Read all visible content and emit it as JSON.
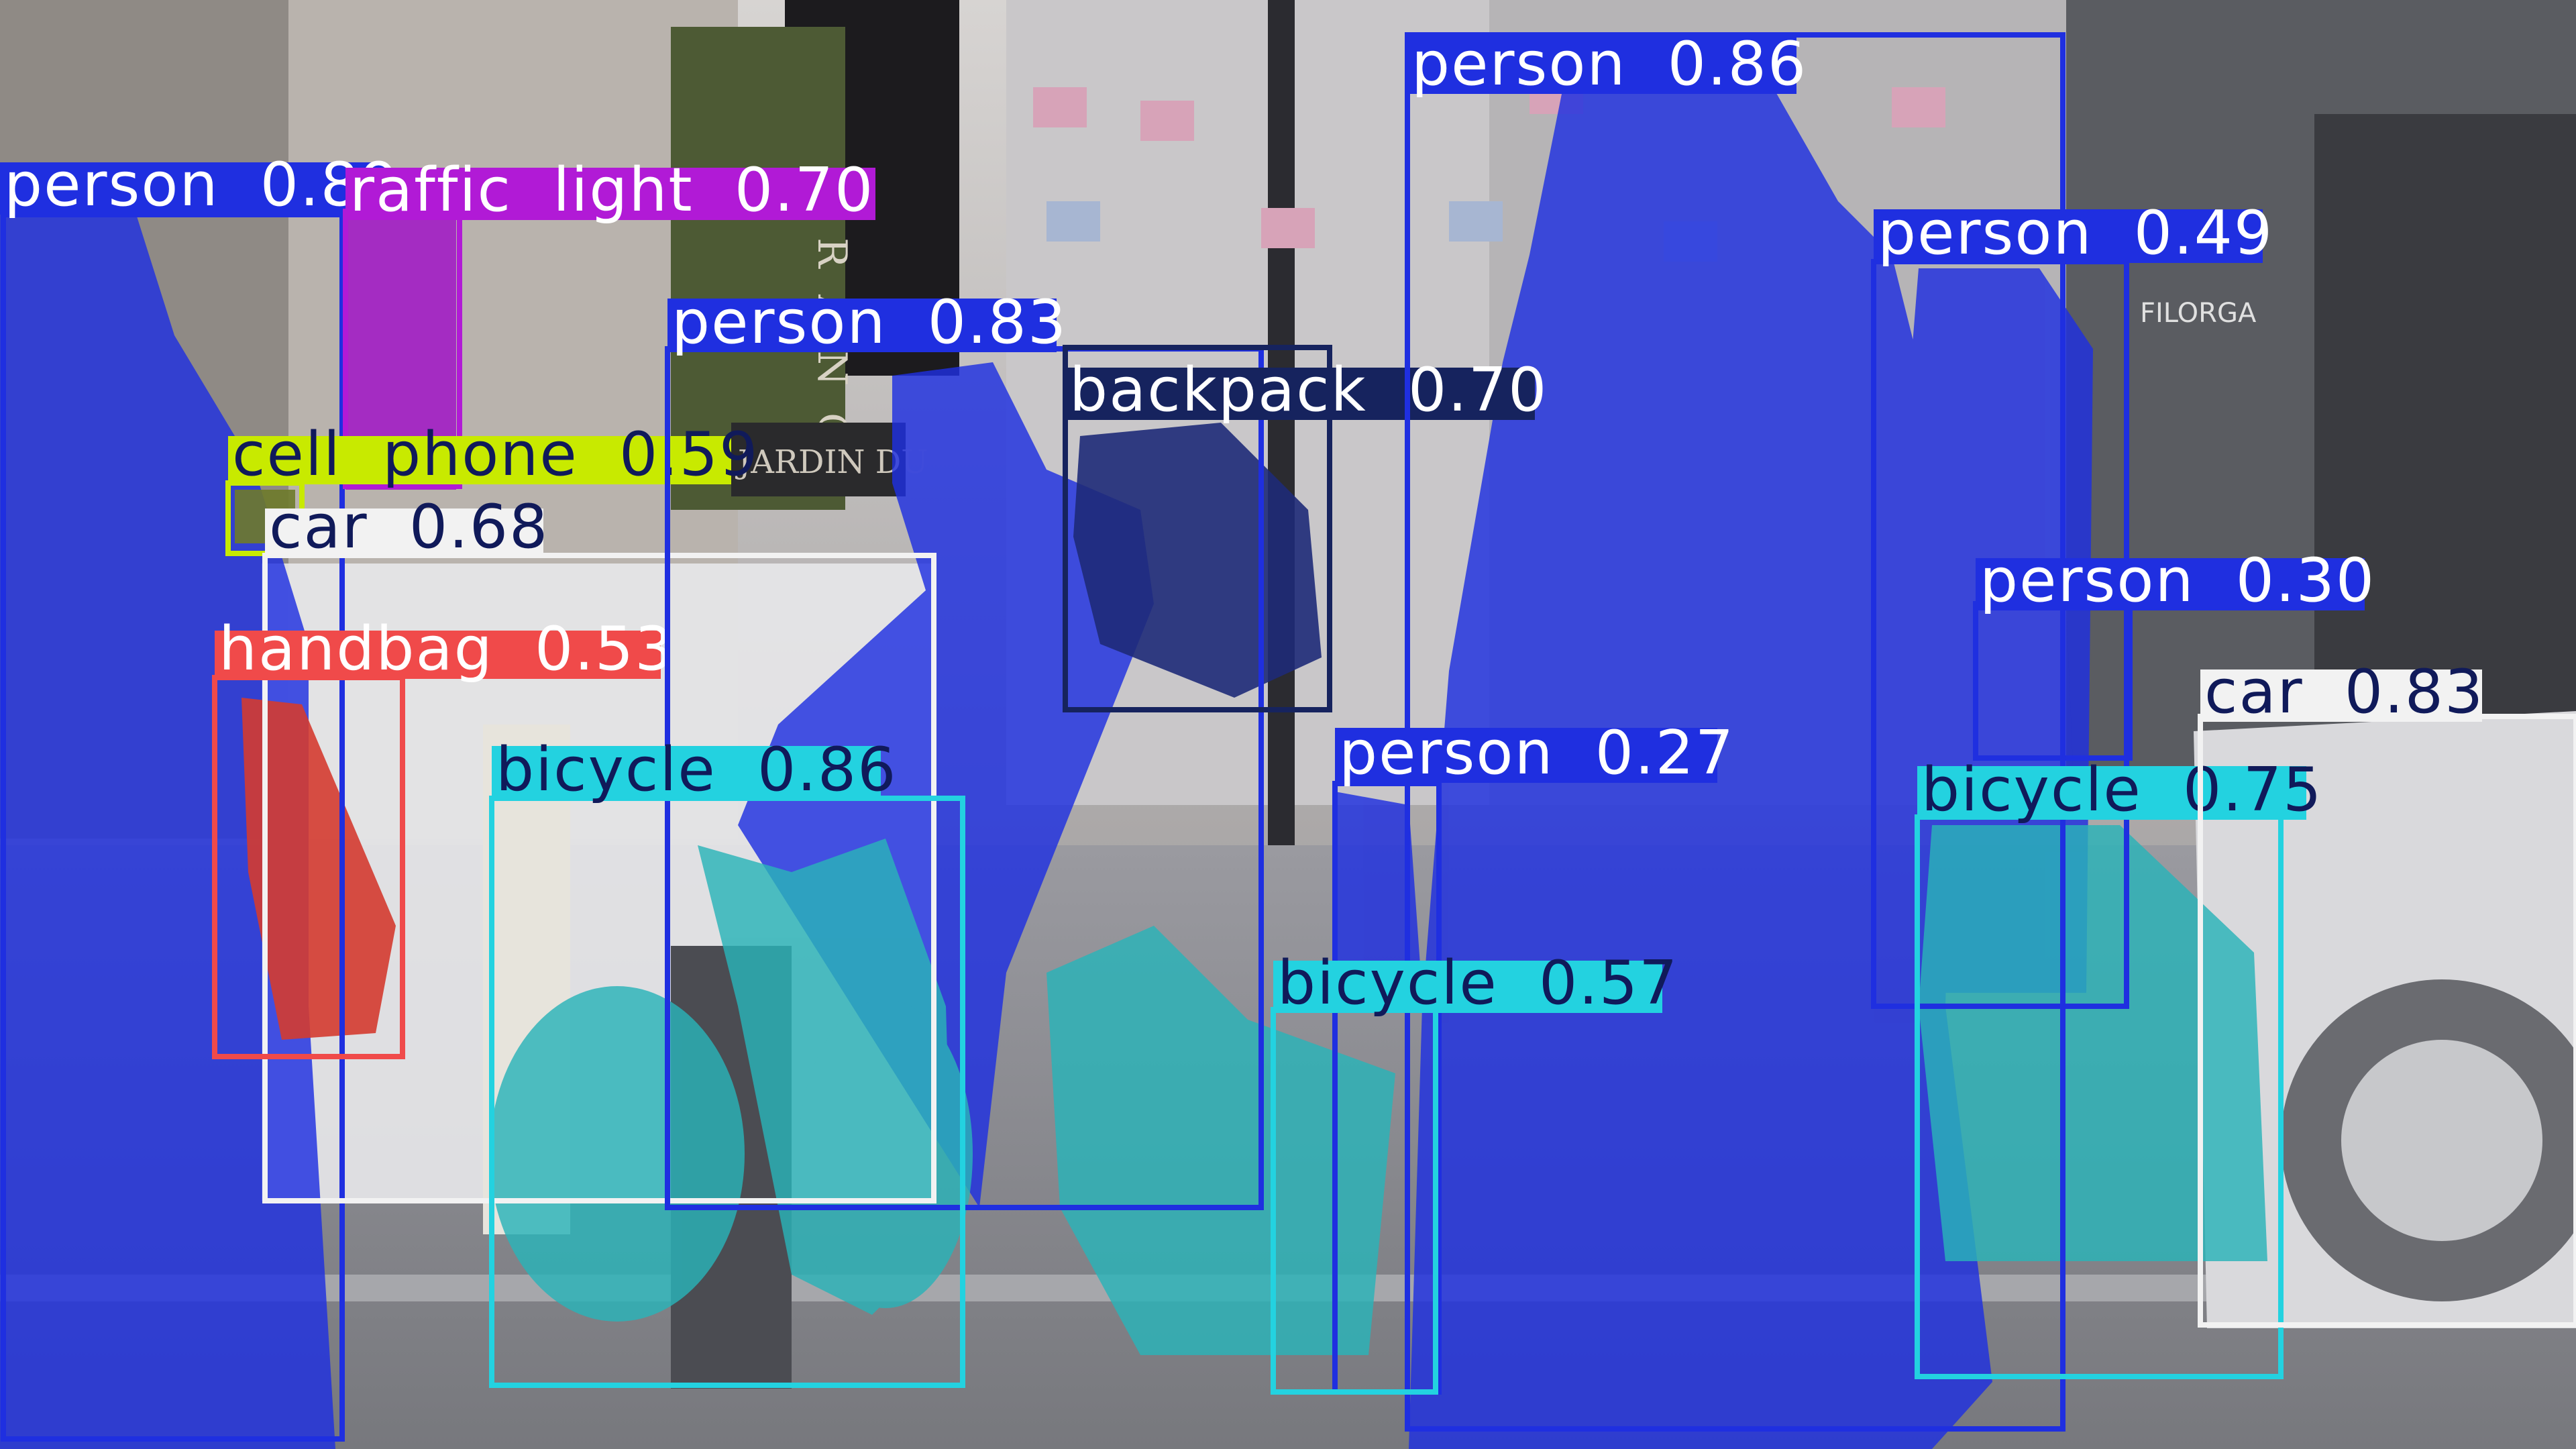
{
  "colors": {
    "person": "#1f2fe0",
    "traffic_light": "#b11ad6",
    "cell_phone": "#c8ea00",
    "car": "#f2f2f2",
    "handbag": "#f04a4a",
    "bicycle": "#23d2e0",
    "backpack": "#16235e",
    "label_text_light": "#ffffff",
    "label_text_dark": "#101a5a"
  },
  "detections": [
    {
      "id": "person-1",
      "class": "person",
      "color_key": "person",
      "score": 0.89,
      "label": "person  0.89",
      "text_color": "light"
    },
    {
      "id": "traffic-light-1",
      "class": "traffic light",
      "color_key": "traffic_light",
      "score": 0.7,
      "label": "raffic  light  0.70",
      "text_color": "light"
    },
    {
      "id": "cell-phone-1",
      "class": "cell phone",
      "color_key": "cell_phone",
      "score": 0.59,
      "label": "cell  phone  0.59",
      "text_color": "dark"
    },
    {
      "id": "car-1",
      "class": "car",
      "color_key": "car",
      "score": 0.68,
      "label": "car  0.68",
      "text_color": "dark"
    },
    {
      "id": "handbag-1",
      "class": "handbag",
      "color_key": "handbag",
      "score": 0.53,
      "label": "handbag  0.53",
      "text_color": "light"
    },
    {
      "id": "person-2",
      "class": "person",
      "color_key": "person",
      "score": 0.83,
      "label": "person  0.83",
      "text_color": "light"
    },
    {
      "id": "backpack-1",
      "class": "backpack",
      "color_key": "backpack",
      "score": 0.7,
      "label": "backpack  0.70",
      "text_color": "light"
    },
    {
      "id": "bicycle-1",
      "class": "bicycle",
      "color_key": "bicycle",
      "score": 0.86,
      "label": "bicycle  0.86",
      "text_color": "dark"
    },
    {
      "id": "person-3",
      "class": "person",
      "color_key": "person",
      "score": 0.86,
      "label": "person  0.86",
      "text_color": "light"
    },
    {
      "id": "person-4",
      "class": "person",
      "color_key": "person",
      "score": 0.49,
      "label": "person  0.49",
      "text_color": "light"
    },
    {
      "id": "person-5",
      "class": "person",
      "color_key": "person",
      "score": 0.3,
      "label": "person  0.30",
      "text_color": "light"
    },
    {
      "id": "person-6",
      "class": "person",
      "color_key": "person",
      "score": 0.27,
      "label": "person  0.27",
      "text_color": "light"
    },
    {
      "id": "bicycle-2",
      "class": "bicycle",
      "color_key": "bicycle",
      "score": 0.57,
      "label": "bicycle  0.57",
      "text_color": "dark"
    },
    {
      "id": "bicycle-3",
      "class": "bicycle",
      "color_key": "bicycle",
      "score": 0.75,
      "label": "bicycle  0.75",
      "text_color": "dark"
    },
    {
      "id": "car-2",
      "class": "car",
      "color_key": "car",
      "score": 0.83,
      "label": "car  0.83",
      "text_color": "dark"
    }
  ],
  "scene_signs": {
    "vertical_sign": "BRANC",
    "jardin_sign": "JARDIN DU",
    "shop_sign": "FILORGA"
  }
}
